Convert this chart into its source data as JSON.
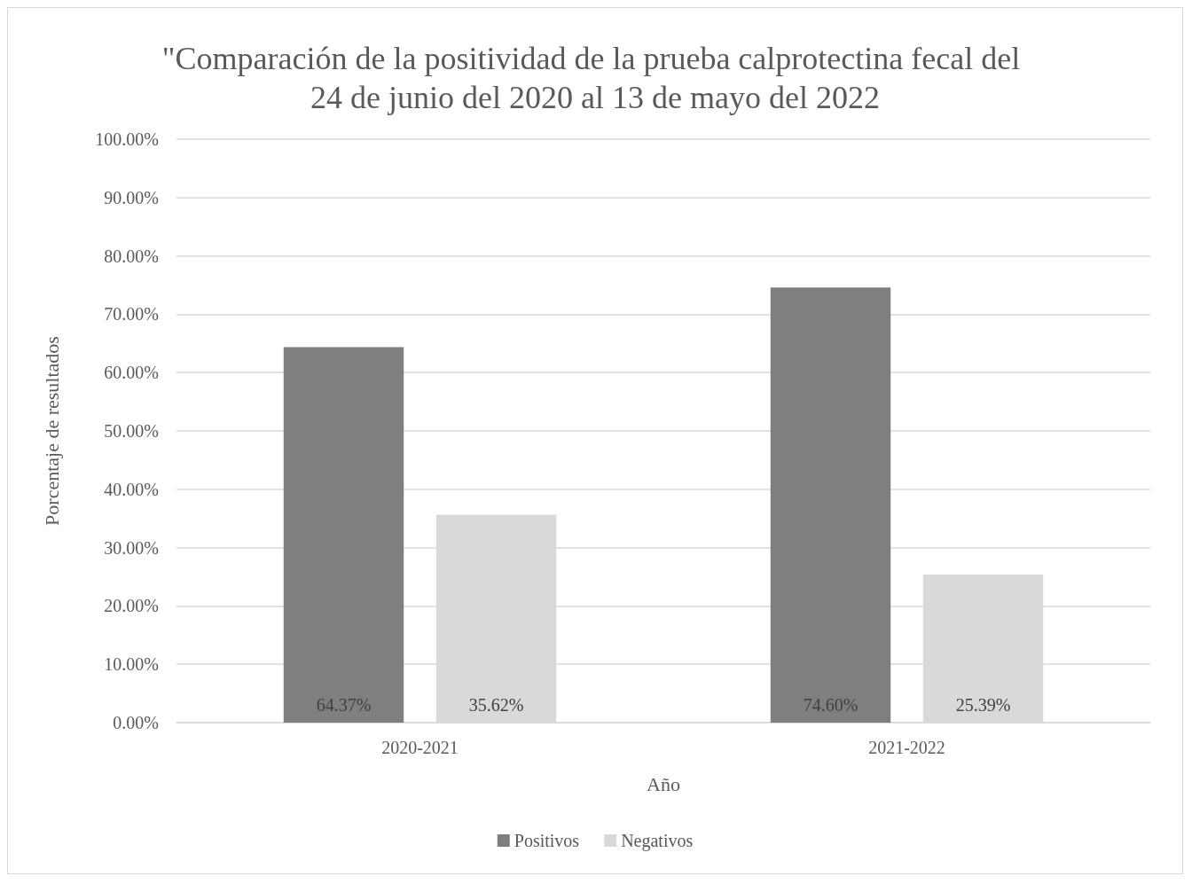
{
  "chart_data": {
    "type": "bar",
    "title": "\"Comparación de la positividad de la prueba calprotectina fecal del 24 de junio del 2020 al 13 de mayo del 2022",
    "xlabel": "Año",
    "ylabel": "Porcentaje de resultados",
    "categories": [
      "2020-2021",
      "2021-2022"
    ],
    "series": [
      {
        "name": "Positivos",
        "color": "#7f7f7f",
        "values": [
          64.37,
          74.6
        ],
        "value_labels": [
          "64.37%",
          "74.60%"
        ]
      },
      {
        "name": "Negativos",
        "color": "#d9d9d9",
        "values": [
          35.62,
          25.39
        ],
        "value_labels": [
          "35.62%",
          "25.39%"
        ]
      }
    ],
    "ylim": [
      0,
      100
    ],
    "yticks": [
      {
        "value": 0,
        "label": "0.00%"
      },
      {
        "value": 10,
        "label": "10.00%"
      },
      {
        "value": 20,
        "label": "20.00%"
      },
      {
        "value": 30,
        "label": "30.00%"
      },
      {
        "value": 40,
        "label": "40.00%"
      },
      {
        "value": 50,
        "label": "50.00%"
      },
      {
        "value": 60,
        "label": "60.00%"
      },
      {
        "value": 70,
        "label": "70.00%"
      },
      {
        "value": 80,
        "label": "80.00%"
      },
      {
        "value": 90,
        "label": "90.00%"
      },
      {
        "value": 100,
        "label": "100.00%"
      }
    ],
    "grid": "y",
    "legend": "bottom"
  }
}
